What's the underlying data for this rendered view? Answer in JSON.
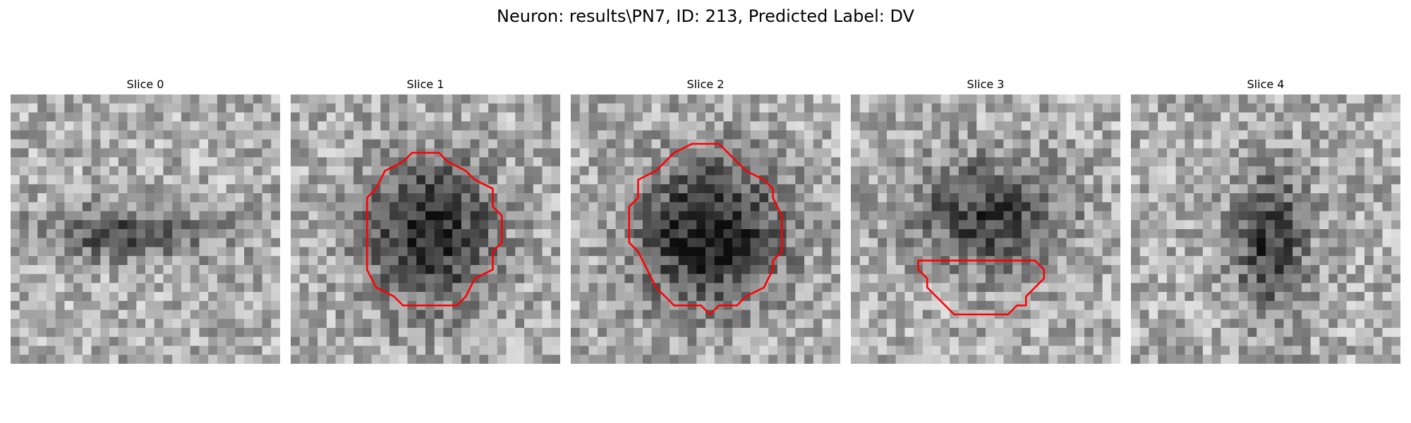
{
  "figure": {
    "suptitle": "Neuron: results\\PN7, ID: 213, Predicted Label: DV"
  },
  "grid": {
    "size": 30
  },
  "outline_color": "#ff0000",
  "panels": [
    {
      "title": "Slice 0",
      "has_contour": false,
      "blob": {
        "cx": 12,
        "cy": 15,
        "rx": 10,
        "ry": 3,
        "strength": 0.35
      },
      "seed": 11
    },
    {
      "title": "Slice 1",
      "has_contour": true,
      "blob": {
        "cx": 15,
        "cy": 15,
        "rx": 7,
        "ry": 8,
        "strength": 0.55
      },
      "seed": 23,
      "contour": [
        [
          13.5,
          6.5
        ],
        [
          16.5,
          6.5
        ],
        [
          17.5,
          7.5
        ],
        [
          19.5,
          8.5
        ],
        [
          20.5,
          9.5
        ],
        [
          22.5,
          10.5
        ],
        [
          22.5,
          12.5
        ],
        [
          23.5,
          13.5
        ],
        [
          23.5,
          16.5
        ],
        [
          22.5,
          17.5
        ],
        [
          22.5,
          19.5
        ],
        [
          20.5,
          20.5
        ],
        [
          19.5,
          22.5
        ],
        [
          18.5,
          23.5
        ],
        [
          12.5,
          23.5
        ],
        [
          11.5,
          22.5
        ],
        [
          9.5,
          21.5
        ],
        [
          8.5,
          19.5
        ],
        [
          8.5,
          11.5
        ],
        [
          9.5,
          10.5
        ],
        [
          10.5,
          8.5
        ],
        [
          12.5,
          7.5
        ]
      ]
    },
    {
      "title": "Slice 2",
      "has_contour": true,
      "blob": {
        "cx": 15,
        "cy": 15,
        "rx": 8,
        "ry": 8,
        "strength": 0.6
      },
      "seed": 37,
      "contour": [
        [
          13.5,
          5.5
        ],
        [
          16.5,
          5.5
        ],
        [
          17.5,
          6.5
        ],
        [
          18.5,
          7.5
        ],
        [
          19.5,
          8.5
        ],
        [
          21.5,
          9.5
        ],
        [
          22.5,
          10.5
        ],
        [
          22.5,
          11.5
        ],
        [
          23.5,
          13.5
        ],
        [
          23.5,
          17.5
        ],
        [
          22.5,
          18.5
        ],
        [
          22.5,
          19.5
        ],
        [
          21.5,
          21.5
        ],
        [
          19.5,
          22.5
        ],
        [
          18.5,
          23.5
        ],
        [
          16.5,
          23.5
        ],
        [
          15.5,
          24.5
        ],
        [
          14.5,
          23.5
        ],
        [
          11.5,
          23.5
        ],
        [
          10.5,
          22.5
        ],
        [
          9.5,
          21.5
        ],
        [
          8.5,
          19.5
        ],
        [
          7.5,
          17.5
        ],
        [
          6.5,
          16.5
        ],
        [
          6.5,
          12.5
        ],
        [
          7.5,
          11.5
        ],
        [
          7.5,
          9.5
        ],
        [
          9.5,
          8.5
        ],
        [
          11.5,
          6.5
        ]
      ]
    },
    {
      "title": "Slice 3",
      "has_contour": true,
      "blob": {
        "cx": 15,
        "cy": 13,
        "rx": 8,
        "ry": 6,
        "strength": 0.45
      },
      "seed": 51,
      "contour": [
        [
          7.5,
          18.5
        ],
        [
          20.5,
          18.5
        ],
        [
          21.5,
          19.5
        ],
        [
          21.5,
          20.5
        ],
        [
          19.5,
          22.5
        ],
        [
          19.5,
          23.5
        ],
        [
          18.5,
          23.5
        ],
        [
          17.5,
          24.5
        ],
        [
          11.5,
          24.5
        ],
        [
          9.5,
          22.5
        ],
        [
          8.5,
          21.5
        ],
        [
          8.5,
          20.5
        ],
        [
          7.5,
          19.5
        ]
      ]
    },
    {
      "title": "Slice 4",
      "has_contour": false,
      "blob": {
        "cx": 15,
        "cy": 16,
        "rx": 4,
        "ry": 8,
        "strength": 0.45
      },
      "seed": 67
    }
  ]
}
